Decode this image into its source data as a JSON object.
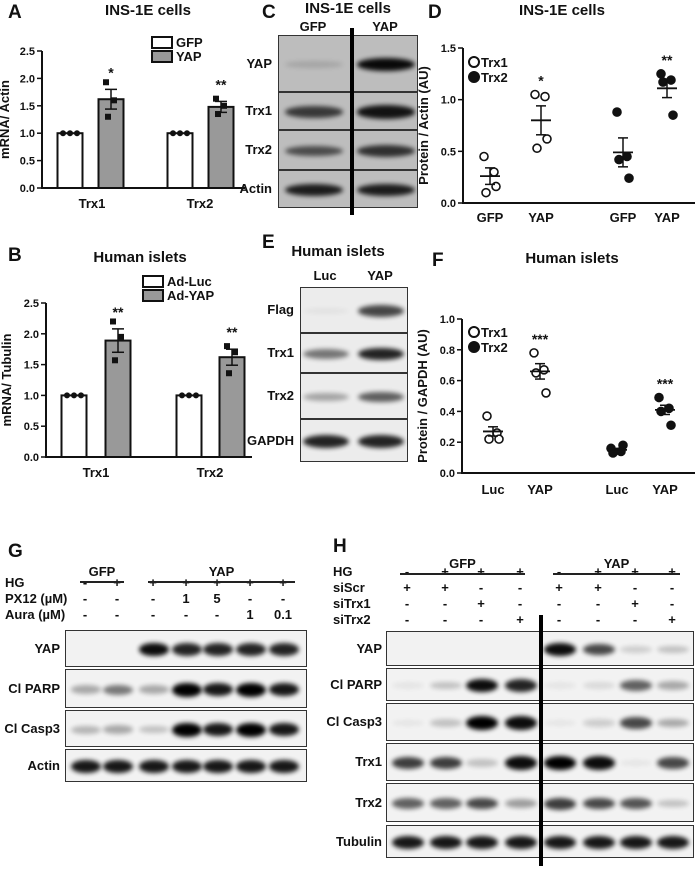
{
  "panels": {
    "A": {
      "letter": "A",
      "title": "INS-1E cells"
    },
    "B": {
      "letter": "B",
      "title": "Human islets"
    },
    "C": {
      "letter": "C",
      "title": "INS-1E cells",
      "lanes": [
        "GFP",
        "YAP"
      ],
      "rows": [
        {
          "label": "YAP",
          "intensity": [
            0.12,
            0.95
          ]
        },
        {
          "label": "Trx1",
          "intensity": [
            0.7,
            0.9
          ]
        },
        {
          "label": "Trx2",
          "intensity": [
            0.6,
            0.75
          ]
        },
        {
          "label": "Actin",
          "intensity": [
            0.85,
            0.85
          ]
        }
      ]
    },
    "D": {
      "letter": "D",
      "title": "INS-1E cells"
    },
    "E": {
      "letter": "E",
      "title": "Human islets",
      "lanes": [
        "Luc",
        "YAP"
      ],
      "rows": [
        {
          "label": "Flag",
          "intensity": [
            0.04,
            0.7
          ]
        },
        {
          "label": "Trx1",
          "intensity": [
            0.5,
            0.85
          ]
        },
        {
          "label": "Trx2",
          "intensity": [
            0.3,
            0.6
          ]
        },
        {
          "label": "GAPDH",
          "intensity": [
            0.85,
            0.85
          ]
        }
      ]
    },
    "F": {
      "letter": "F",
      "title": "Human islets"
    },
    "G": {
      "letter": "G",
      "groups": [
        "GFP",
        "YAP"
      ],
      "conditions": [
        {
          "label": "HG",
          "values": [
            "-",
            "+",
            "+",
            "+",
            "+",
            "+",
            "+"
          ]
        },
        {
          "label": "PX12 (µM)",
          "values": [
            "-",
            "-",
            "-",
            "1",
            "5",
            "-",
            "-"
          ]
        },
        {
          "label": "Aura (µM)",
          "values": [
            "-",
            "-",
            "-",
            "-",
            "-",
            "1",
            "0.1"
          ]
        }
      ],
      "rows": [
        {
          "label": "YAP",
          "intensity": [
            0,
            0,
            0.95,
            0.85,
            0.85,
            0.85,
            0.85
          ]
        },
        {
          "label": "Cl PARP",
          "intensity": [
            0.3,
            0.5,
            0.3,
            1,
            0.9,
            1,
            0.9
          ]
        },
        {
          "label": "Cl Casp3",
          "intensity": [
            0.25,
            0.3,
            0.2,
            1,
            0.9,
            1,
            0.9
          ]
        },
        {
          "label": "Actin",
          "intensity": [
            0.9,
            0.9,
            0.9,
            0.9,
            0.9,
            0.9,
            0.9
          ]
        }
      ]
    },
    "H": {
      "letter": "H",
      "groups": [
        "GFP",
        "YAP"
      ],
      "conditions": [
        {
          "label": "HG",
          "values": [
            "-",
            "+",
            "+",
            "+",
            "-",
            "+",
            "+",
            "+"
          ]
        },
        {
          "label": "siScr",
          "values": [
            "+",
            "+",
            "-",
            "-",
            "+",
            "+",
            "-",
            "-"
          ]
        },
        {
          "label": "siTrx1",
          "values": [
            "-",
            "-",
            "+",
            "-",
            "-",
            "-",
            "+",
            "-"
          ]
        },
        {
          "label": "siTrx2",
          "values": [
            "-",
            "-",
            "-",
            "+",
            "-",
            "-",
            "-",
            "+"
          ]
        }
      ],
      "rows": [
        {
          "label": "YAP",
          "intensity": [
            0,
            0,
            0,
            0,
            0.95,
            0.7,
            0.15,
            0.2
          ]
        },
        {
          "label": "Cl PARP",
          "intensity": [
            0.05,
            0.2,
            0.95,
            0.85,
            0.05,
            0.1,
            0.6,
            0.3
          ]
        },
        {
          "label": "Cl Casp3",
          "intensity": [
            0.05,
            0.2,
            1,
            0.95,
            0.05,
            0.15,
            0.7,
            0.3
          ]
        },
        {
          "label": "Trx1",
          "intensity": [
            0.75,
            0.75,
            0.2,
            0.95,
            1,
            0.95,
            0.05,
            0.7
          ]
        },
        {
          "label": "Trx2",
          "intensity": [
            0.6,
            0.6,
            0.7,
            0.35,
            0.75,
            0.7,
            0.65,
            0.2
          ]
        },
        {
          "label": "Tubulin",
          "intensity": [
            0.9,
            0.9,
            0.9,
            0.9,
            0.9,
            0.9,
            0.9,
            0.9
          ]
        }
      ]
    }
  },
  "chart_data": [
    {
      "id": "A",
      "type": "bar",
      "title": "INS-1E cells",
      "ylabel": "mRNA/ Actin",
      "xlabel": "",
      "categories": [
        "Trx1",
        "Trx2"
      ],
      "ylim": [
        0,
        2.5
      ],
      "yticks": [
        "0.0",
        "0.5",
        "1.0",
        "1.5",
        "2.0",
        "2.5"
      ],
      "legend": "top-right",
      "colors": {
        "control": "#ffffff",
        "treated": "#999999"
      },
      "series": [
        {
          "name": "GFP",
          "values": [
            1.0,
            1.0
          ],
          "sem": [
            0,
            0
          ],
          "points": [
            [
              1,
              1,
              1
            ],
            [
              1,
              1,
              1
            ]
          ],
          "sig": [
            "",
            ""
          ]
        },
        {
          "name": "YAP",
          "values": [
            1.62,
            1.48
          ],
          "sem": [
            0.18,
            0.1
          ],
          "points": [
            [
              1.93,
              1.6,
              1.3
            ],
            [
              1.63,
              1.5,
              1.35
            ]
          ],
          "sig": [
            "*",
            "**"
          ]
        }
      ]
    },
    {
      "id": "B",
      "type": "bar",
      "title": "Human islets",
      "ylabel": "mRNA/ Tubulin",
      "xlabel": "",
      "categories": [
        "Trx1",
        "Trx2"
      ],
      "ylim": [
        0,
        2.5
      ],
      "yticks": [
        "0.0",
        "0.5",
        "1.0",
        "1.5",
        "2.0",
        "2.5"
      ],
      "legend": "top-right",
      "colors": {
        "control": "#ffffff",
        "treated": "#999999"
      },
      "series": [
        {
          "name": "Ad-Luc",
          "values": [
            1.0,
            1.0
          ],
          "sem": [
            0,
            0
          ],
          "points": [
            [
              1,
              1,
              1
            ],
            [
              1,
              1,
              1
            ]
          ],
          "sig": [
            "",
            ""
          ]
        },
        {
          "name": "Ad-YAP",
          "values": [
            1.89,
            1.62
          ],
          "sem": [
            0.19,
            0.13
          ],
          "points": [
            [
              2.2,
              1.95,
              1.57
            ],
            [
              1.8,
              1.7,
              1.36
            ]
          ],
          "sig": [
            "**",
            "**"
          ]
        }
      ]
    },
    {
      "id": "D",
      "type": "scatter",
      "title": "INS-1E cells",
      "ylabel": "Protein / Actin (AU)",
      "xlabel": "",
      "categories": [
        "GFP",
        "YAP",
        "GFP",
        "YAP"
      ],
      "ylim": [
        0,
        1.5
      ],
      "yticks": [
        "0.0",
        "0.5",
        "1.0",
        "1.5"
      ],
      "legend": "top-left",
      "legend_entries": [
        "Trx1",
        "Trx2"
      ],
      "groups": [
        {
          "series": "Trx1",
          "mean": 0.26,
          "sem": 0.08,
          "points": [
            0.45,
            0.3,
            0.1,
            0.16
          ],
          "sig": ""
        },
        {
          "series": "Trx1",
          "mean": 0.8,
          "sem": 0.14,
          "points": [
            1.05,
            1.03,
            0.53,
            0.62
          ],
          "sig": "*"
        },
        {
          "series": "Trx2",
          "mean": 0.49,
          "sem": 0.14,
          "points": [
            0.88,
            0.45,
            0.42,
            0.24
          ],
          "sig": ""
        },
        {
          "series": "Trx2",
          "mean": 1.11,
          "sem": 0.09,
          "points": [
            1.25,
            1.19,
            1.17,
            0.85
          ],
          "sig": "**"
        }
      ]
    },
    {
      "id": "F",
      "type": "scatter",
      "title": "Human islets",
      "ylabel": "Protein / GAPDH (AU)",
      "xlabel": "",
      "categories": [
        "Luc",
        "YAP",
        "Luc",
        "YAP"
      ],
      "ylim": [
        0,
        1.0
      ],
      "yticks": [
        "0.0",
        "0.2",
        "0.4",
        "0.6",
        "0.8",
        "1.0"
      ],
      "legend": "top-left",
      "legend_entries": [
        "Trx1",
        "Trx2"
      ],
      "groups": [
        {
          "series": "Trx1",
          "mean": 0.27,
          "sem": 0.03,
          "points": [
            0.37,
            0.26,
            0.22,
            0.22
          ],
          "sig": ""
        },
        {
          "series": "Trx1",
          "mean": 0.66,
          "sem": 0.05,
          "points": [
            0.78,
            0.67,
            0.65,
            0.52
          ],
          "sig": "***"
        },
        {
          "series": "Trx2",
          "mean": 0.15,
          "sem": 0.01,
          "points": [
            0.16,
            0.14,
            0.13,
            0.18
          ],
          "sig": ""
        },
        {
          "series": "Trx2",
          "mean": 0.41,
          "sem": 0.03,
          "points": [
            0.49,
            0.42,
            0.4,
            0.31
          ],
          "sig": "***"
        }
      ]
    }
  ]
}
